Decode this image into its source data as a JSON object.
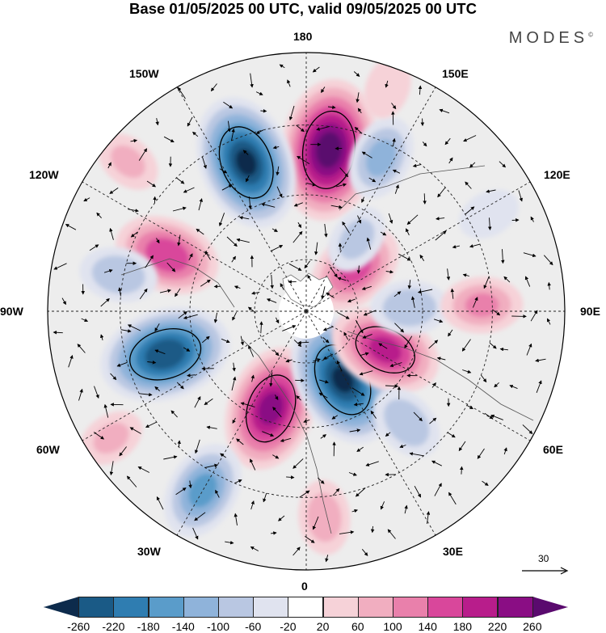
{
  "title": "Base 01/05/2025 00 UTC, valid 09/05/2025 00 UTC",
  "logo": "MODES",
  "logo_mark": "©",
  "longitude_labels": {
    "n180": "180",
    "e150": "150E",
    "e120": "120E",
    "e90": "90E",
    "e60": "60E",
    "e30": "30E",
    "s0": "0",
    "w30": "30W",
    "w60": "60W",
    "w90": "90W",
    "w120": "120W",
    "w150": "150W"
  },
  "reference_vector": "30",
  "colorbar": {
    "ticks": [
      "-260",
      "-220",
      "-180",
      "-140",
      "-100",
      "-60",
      "-20",
      "20",
      "60",
      "100",
      "140",
      "180",
      "220",
      "260"
    ],
    "colors": [
      "#0d2b4c",
      "#1a5a86",
      "#2f7db1",
      "#5a9cca",
      "#8fb3da",
      "#b9c7e2",
      "#e0e3ef",
      "#ffffff",
      "#f6d2d8",
      "#f1aec0",
      "#e980ab",
      "#d9479b",
      "#b81d8b",
      "#8a0d84",
      "#5a0a6e"
    ]
  },
  "anomalies": [
    {
      "lon": 172,
      "r": 0.63,
      "value": 280
    },
    {
      "lon": -158,
      "r": 0.62,
      "value": -260
    },
    {
      "lon": 154,
      "r": 0.66,
      "value": -110
    },
    {
      "lon": 131,
      "r": 0.25,
      "value": 150
    },
    {
      "lon": 145,
      "r": 0.34,
      "value": -70
    },
    {
      "lon": -112,
      "r": 0.58,
      "value": 170
    },
    {
      "lon": -101,
      "r": 0.74,
      "value": -90
    },
    {
      "lon": -73,
      "r": 0.57,
      "value": -250
    },
    {
      "lon": -20,
      "r": 0.4,
      "value": 230
    },
    {
      "lon": 28,
      "r": 0.3,
      "value": -260
    },
    {
      "lon": 64,
      "r": 0.34,
      "value": 190
    },
    {
      "lon": 92,
      "r": 0.4,
      "value": -90
    },
    {
      "lon": 92,
      "r": 0.68,
      "value": 100
    },
    {
      "lon": 42,
      "r": 0.58,
      "value": -90
    },
    {
      "lon": -30,
      "r": 0.8,
      "value": -150
    },
    {
      "lon": 5,
      "r": 0.8,
      "value": 80
    },
    {
      "lon": -57,
      "r": 0.9,
      "value": 60
    },
    {
      "lon": 118,
      "r": 0.8,
      "value": -50
    },
    {
      "lon": -130,
      "r": 0.9,
      "value": 60
    },
    {
      "lon": 160,
      "r": 0.92,
      "value": 50
    }
  ]
}
